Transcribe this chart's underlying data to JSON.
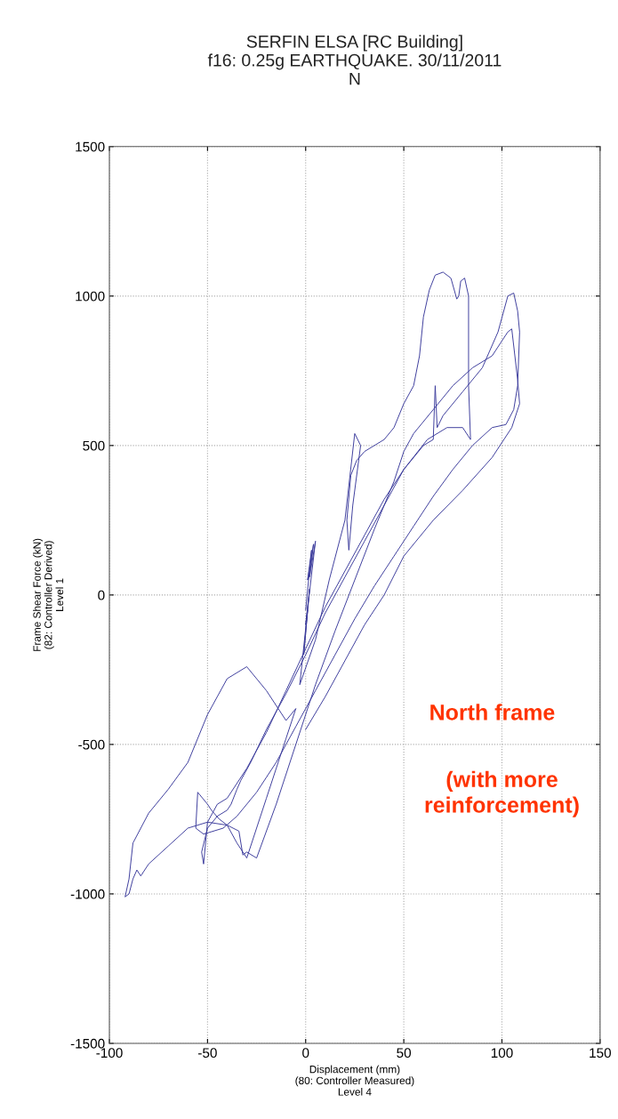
{
  "chart_data": {
    "type": "line",
    "title": "SERFIN ELSA [RC Building]\nf16: 0.25g EARTHQUAKE. 30/11/2011\nN",
    "xlabel": "Displacement (mm)\n(80: Controller Measured)\nLevel 4",
    "ylabel": "Frame Shear Force (kN)\n(82: Controller Derived)\nLevel 1",
    "annotations": [
      "North frame",
      "(with more\nreinforcement)"
    ],
    "series": [
      {
        "color": "#3c3c9c",
        "x": [
          0,
          3,
          1,
          4,
          2,
          5,
          0,
          2,
          -1,
          1,
          -3,
          5,
          12,
          20,
          25,
          28,
          24,
          22,
          21,
          23,
          26,
          30,
          35,
          40,
          45,
          50,
          55,
          58,
          60,
          63,
          66,
          70,
          74,
          77,
          78,
          79,
          81,
          83,
          83,
          84,
          80,
          72,
          62,
          50,
          40,
          30,
          20,
          10,
          0,
          -10,
          -20,
          -28,
          -33,
          -35,
          -38,
          -40,
          -45,
          -50,
          -53,
          -52,
          -50,
          -45,
          -40,
          -30,
          -20,
          -10,
          0,
          10,
          20,
          30,
          40,
          50,
          60,
          65,
          66,
          67,
          70,
          80,
          90,
          98,
          103,
          106,
          108,
          109,
          108,
          106,
          102,
          95,
          85,
          75,
          65,
          55,
          45,
          35,
          25,
          15,
          5,
          -5,
          -15,
          -25,
          -35,
          -42,
          -47,
          -52,
          -56,
          -55,
          -50,
          -48,
          -44,
          -40,
          -35,
          -30,
          -20,
          -10,
          -5,
          -10,
          -20,
          -30,
          -40,
          -50,
          -60,
          -70,
          -80,
          -88,
          -90,
          -92,
          -90,
          -88,
          -86,
          -84,
          -80,
          -70,
          -60,
          -50,
          -40,
          -34,
          -32,
          -30,
          -25,
          -15,
          -5,
          5,
          15,
          25,
          35,
          45,
          50,
          55,
          65,
          75,
          85,
          95,
          100,
          103,
          105,
          108,
          109,
          105,
          95,
          80,
          65,
          50,
          40,
          30,
          20,
          10,
          0
        ],
        "values": [
          -50,
          150,
          50,
          170,
          60,
          180,
          -100,
          20,
          -200,
          -50,
          -300,
          -150,
          50,
          250,
          540,
          500,
          300,
          150,
          250,
          400,
          450,
          480,
          500,
          520,
          560,
          640,
          700,
          800,
          930,
          1020,
          1070,
          1080,
          1060,
          990,
          1000,
          1050,
          1060,
          1000,
          700,
          520,
          560,
          560,
          520,
          420,
          300,
          180,
          60,
          -60,
          -200,
          -330,
          -450,
          -560,
          -620,
          -650,
          -700,
          -720,
          -740,
          -780,
          -860,
          -900,
          -760,
          -700,
          -680,
          -580,
          -460,
          -320,
          -180,
          -40,
          80,
          200,
          320,
          420,
          500,
          520,
          700,
          560,
          600,
          680,
          760,
          880,
          1000,
          1010,
          950,
          880,
          700,
          620,
          570,
          560,
          500,
          420,
          330,
          230,
          130,
          30,
          -80,
          -200,
          -320,
          -440,
          -560,
          -660,
          -740,
          -780,
          -790,
          -800,
          -780,
          -660,
          -700,
          -720,
          -750,
          -770,
          -830,
          -880,
          -680,
          -480,
          -380,
          -420,
          -320,
          -240,
          -280,
          -400,
          -560,
          -650,
          -730,
          -830,
          -950,
          -1010,
          -1000,
          -950,
          -920,
          -940,
          -900,
          -840,
          -780,
          -760,
          -770,
          -790,
          -870,
          -860,
          -880,
          -700,
          -500,
          -300,
          -120,
          50,
          220,
          380,
          480,
          540,
          620,
          700,
          760,
          800,
          850,
          880,
          890,
          720,
          640,
          560,
          460,
          350,
          250,
          130,
          0,
          -100,
          -220,
          -340,
          -450
        ]
      }
    ],
    "xlim": [
      -100,
      150
    ],
    "xticks": [
      -100,
      -50,
      0,
      50,
      100,
      150
    ],
    "ylim": [
      -1500,
      1500
    ],
    "yticks": [
      -1500,
      -1000,
      -500,
      0,
      500,
      1000,
      1500
    ],
    "grid": true,
    "line_style": "solid",
    "marker": "none"
  }
}
